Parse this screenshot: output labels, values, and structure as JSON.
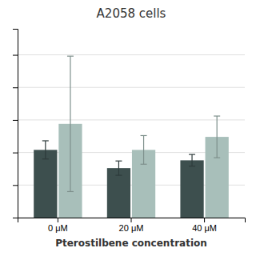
{
  "chart_data": {
    "type": "bar",
    "title": "A2058 cells",
    "xlabel": "Pterostilbene concentration",
    "categories": [
      "0 μM",
      "20 μM",
      "40 μM"
    ],
    "series": [
      {
        "color": "#3d4f4e",
        "values": [
          0.52,
          0.38,
          0.44
        ],
        "errors": [
          0.07,
          0.055,
          0.045
        ]
      },
      {
        "color": "#a8bfba",
        "values": [
          0.72,
          0.52,
          0.62
        ],
        "errors": [
          0.52,
          0.11,
          0.16
        ]
      }
    ],
    "ylim": [
      0,
      1.45
    ],
    "yticks": [
      0.0,
      0.25,
      0.5,
      0.75,
      1.0,
      1.25
    ],
    "grid": true,
    "tick_labels": "x"
  }
}
